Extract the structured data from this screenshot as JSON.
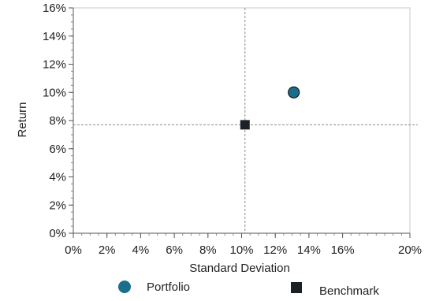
{
  "chart_data": {
    "type": "scatter",
    "xlabel": "Standard Deviation",
    "ylabel": "Return",
    "xlim": [
      0,
      20
    ],
    "ylim": [
      0,
      16
    ],
    "x_ticks": [
      0,
      2,
      4,
      6,
      8,
      10,
      12,
      14,
      16,
      20
    ],
    "x_tick_labels": [
      "0%",
      "2%",
      "4%",
      "6%",
      "8%",
      "10%",
      "12%",
      "14%",
      "16%",
      "20%"
    ],
    "y_ticks": [
      0,
      2,
      4,
      6,
      8,
      10,
      12,
      14,
      16
    ],
    "y_tick_labels": [
      "0%",
      "2%",
      "4%",
      "6%",
      "8%",
      "10%",
      "12%",
      "14%",
      "16%"
    ],
    "grid": false,
    "reference_lines": {
      "x": 10.2,
      "y": 7.7
    },
    "series": [
      {
        "name": "Portfolio",
        "marker": "circle",
        "color": "#1a6e8c",
        "points": [
          {
            "x": 13.1,
            "y": 10.0
          }
        ]
      },
      {
        "name": "Benchmark",
        "marker": "square",
        "color": "#1c2127",
        "points": [
          {
            "x": 10.2,
            "y": 7.7
          }
        ]
      }
    ],
    "legend_position": "bottom"
  }
}
